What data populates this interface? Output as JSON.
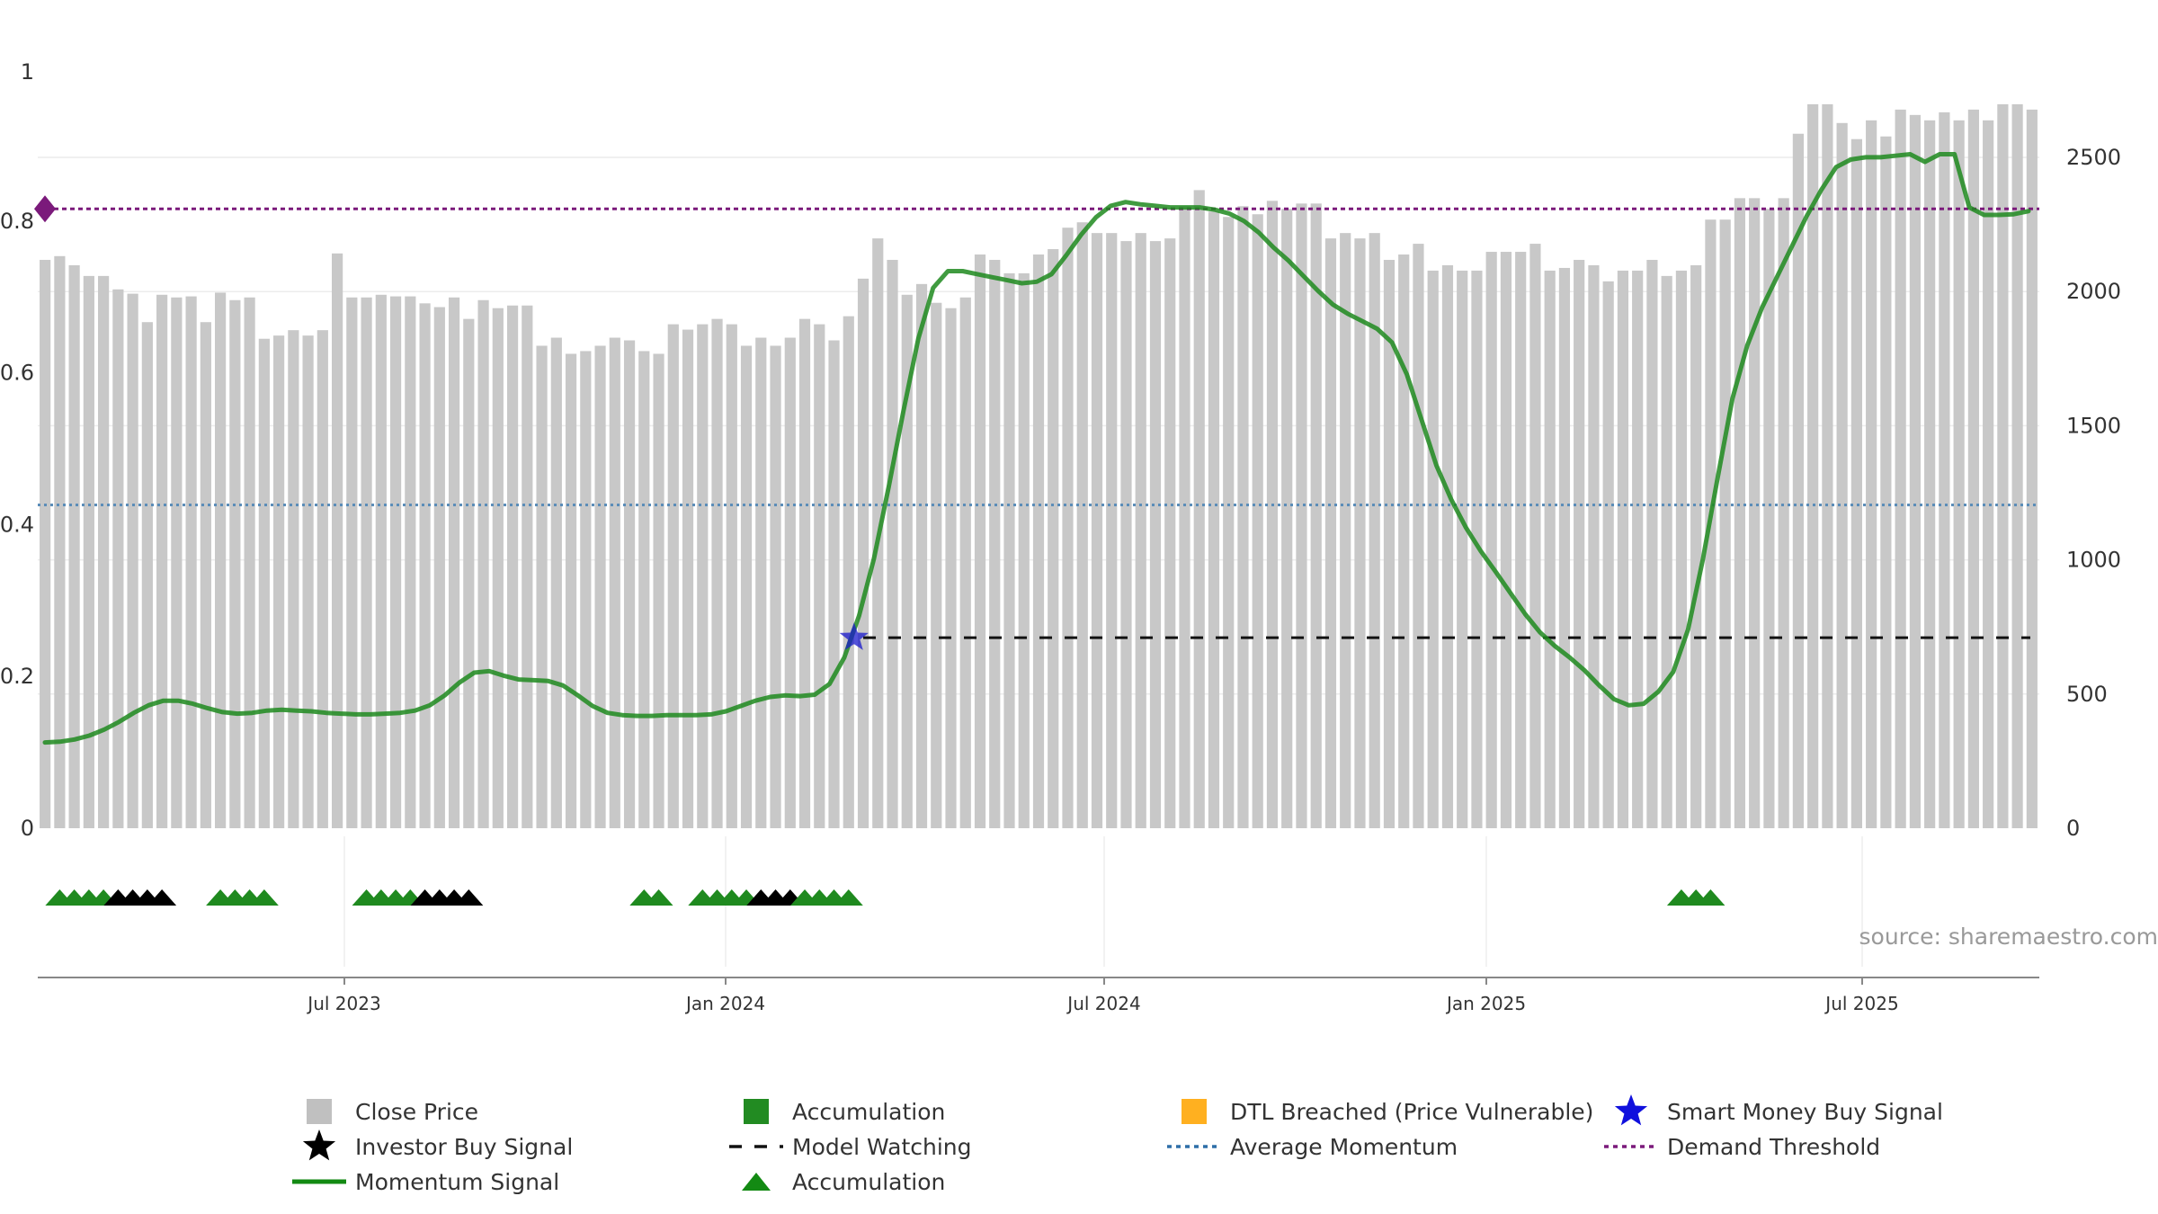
{
  "chart_data": {
    "type": "bar",
    "source": "source: sharemaestro.com",
    "x_ticks": [
      "Jul 2023",
      "Jan 2024",
      "Jul 2024",
      "Jan 2025",
      "Jul 2025"
    ],
    "left_axis": {
      "ticks": [
        "0",
        "0.2",
        "0.4",
        "0.6",
        "0.8",
        "1"
      ],
      "ylim": [
        0,
        1
      ]
    },
    "right_axis": {
      "ticks": [
        "0",
        "500",
        "1000",
        "1500",
        "2000",
        "2500"
      ],
      "ylim": [
        0,
        2800
      ]
    },
    "close_price": [
      2118,
      2132,
      2098,
      2058,
      2058,
      2008,
      1992,
      1886,
      1988,
      1978,
      1982,
      1886,
      1996,
      1968,
      1978,
      1824,
      1836,
      1856,
      1836,
      1856,
      2142,
      1978,
      1978,
      1988,
      1982,
      1982,
      1956,
      1942,
      1978,
      1898,
      1968,
      1938,
      1948,
      1948,
      1798,
      1828,
      1768,
      1778,
      1798,
      1828,
      1818,
      1778,
      1768,
      1878,
      1858,
      1878,
      1898,
      1878,
      1798,
      1828,
      1798,
      1828,
      1898,
      1878,
      1818,
      1908,
      2048,
      2198,
      2118,
      1988,
      2028,
      1958,
      1938,
      1978,
      2138,
      2118,
      2068,
      2068,
      2138,
      2158,
      2238,
      2258,
      2218,
      2218,
      2188,
      2218,
      2188,
      2198,
      2318,
      2378,
      2298,
      2278,
      2318,
      2288,
      2338,
      2308,
      2328,
      2328,
      2198,
      2218,
      2198,
      2218,
      2118,
      2138,
      2178,
      2078,
      2098,
      2078,
      2078,
      2148,
      2148,
      2148,
      2178,
      2078,
      2088,
      2118,
      2098,
      2038,
      2078,
      2078,
      2118,
      2058,
      2078,
      2098,
      2268,
      2268,
      2348,
      2348,
      2308,
      2348,
      2588,
      2698,
      2698,
      2628,
      2568,
      2638,
      2578,
      2678,
      2658,
      2638,
      2668,
      2638,
      2678,
      2638,
      2698,
      2698,
      2678
    ],
    "bar_state": "GGGGGGGGGGGGGGGGGGGGGGGGGGGGGGGGGGGGGGGGGGGGGGGGGGGGGGGGGGGGGGGGGGGGGGGGGGGGGGGGGGGGGGGGGGGGGGGGGGGGGGGGGGGGGGGGGGGGGGGGGGGGGGGGGGGGGGGGGG",
    "bar_state_note": "G=grey close price, A=accumulation, D=DTL breached",
    "momentum": [
      0.113,
      0.114,
      0.117,
      0.122,
      0.13,
      0.14,
      0.152,
      0.162,
      0.168,
      0.168,
      0.164,
      0.158,
      0.153,
      0.151,
      0.152,
      0.155,
      0.156,
      0.155,
      0.154,
      0.152,
      0.151,
      0.15,
      0.15,
      0.151,
      0.152,
      0.155,
      0.162,
      0.175,
      0.192,
      0.205,
      0.207,
      0.201,
      0.196,
      0.195,
      0.194,
      0.188,
      0.175,
      0.161,
      0.152,
      0.149,
      0.148,
      0.148,
      0.149,
      0.149,
      0.149,
      0.15,
      0.154,
      0.161,
      0.168,
      0.173,
      0.175,
      0.174,
      0.176,
      0.19,
      0.225,
      0.28,
      0.355,
      0.45,
      0.55,
      0.645,
      0.712,
      0.734,
      0.734,
      0.73,
      0.726,
      0.722,
      0.718,
      0.72,
      0.73,
      0.755,
      0.782,
      0.805,
      0.82,
      0.825,
      0.822,
      0.82,
      0.818,
      0.818,
      0.818,
      0.815,
      0.81,
      0.8,
      0.785,
      0.765,
      0.748,
      0.728,
      0.708,
      0.69,
      0.678,
      0.668,
      0.658,
      0.64,
      0.598,
      0.538,
      0.478,
      0.433,
      0.396,
      0.365,
      0.338,
      0.31,
      0.282,
      0.258,
      0.24,
      0.225,
      0.208,
      0.188,
      0.17,
      0.162,
      0.164,
      0.18,
      0.206,
      0.262,
      0.354,
      0.462,
      0.566,
      0.636,
      0.686,
      0.726,
      0.766,
      0.806,
      0.841,
      0.871,
      0.881,
      0.884,
      0.884,
      0.886,
      0.888,
      0.878,
      0.888,
      0.888,
      0.818,
      0.808,
      0.808,
      0.809,
      0.813
    ],
    "momentum_start_x_frac": 0,
    "smart_money_signal": {
      "index": 55,
      "value": 0.251
    },
    "model_watching": {
      "value": 0.251,
      "start_index": 56
    },
    "average_momentum": 0.426,
    "demand_threshold": 0.816,
    "marker_rows": [
      {
        "start": 1,
        "kinds": "AAAAIIII"
      },
      {
        "start": 12,
        "kinds": "AAAA"
      },
      {
        "start": 22,
        "kinds": "AAAAIIII"
      },
      {
        "start": 41,
        "kinds": "AA"
      },
      {
        "start": 45,
        "kinds": "AAAAIII"
      },
      {
        "start": 52,
        "kinds": "AAAA"
      },
      {
        "start": 112,
        "kinds": "AAA"
      }
    ],
    "colors": {
      "grey_bar": "#c8c8c8",
      "accumulation_bar": "#2e8b2e",
      "dtl_bar": "#ffd27f",
      "momentum": "#1f8a1f",
      "average_momentum": "#5b8db8",
      "demand_threshold": "#7b1a7b",
      "smart_money": "#1a1acc",
      "model_watching": "#111111",
      "accumulation_marker": "#1f8a1f",
      "investor_marker": "#000000"
    },
    "legend": [
      {
        "label": "Close Price",
        "swatch": "square",
        "color": "#c0c0c0"
      },
      {
        "label": "Accumulation",
        "swatch": "square",
        "color": "#228b22"
      },
      {
        "label": "DTL Breached (Price Vulnerable)",
        "swatch": "square",
        "color": "#ffb020"
      },
      {
        "label": "Smart Money Buy Signal",
        "swatch": "star",
        "color": "#1010dd"
      },
      {
        "label": "Investor Buy Signal",
        "swatch": "star",
        "color": "#000000"
      },
      {
        "label": "Model Watching",
        "swatch": "dash",
        "color": "#111111"
      },
      {
        "label": "Average Momentum",
        "swatch": "dotted",
        "color": "#2e6fa8"
      },
      {
        "label": "Demand Threshold",
        "swatch": "dotted",
        "color": "#7b1a7b"
      },
      {
        "label": "Momentum Signal",
        "swatch": "line",
        "color": "#138a13"
      },
      {
        "label": "Accumulation",
        "swatch": "triangle",
        "color": "#138a13"
      }
    ]
  }
}
